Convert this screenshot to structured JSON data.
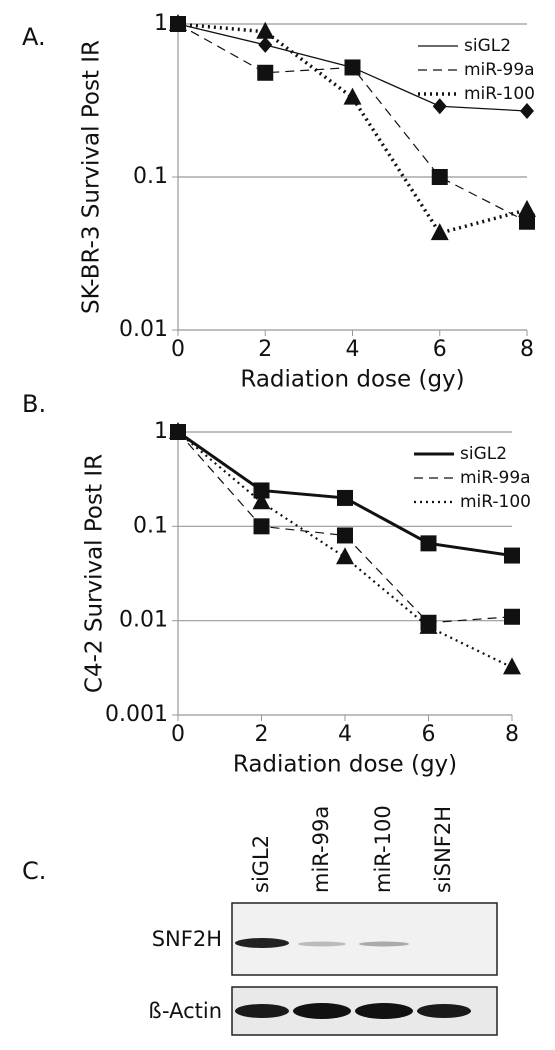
{
  "chart_data": [
    {
      "type": "line",
      "panel_label": "A.",
      "ylabel": "SK-BR-3 Survival Post IR",
      "xlabel": "Radiation dose (gy)",
      "x": [
        0,
        2,
        4,
        6,
        8
      ],
      "xlim": [
        0,
        8
      ],
      "xticks": [
        0,
        2,
        4,
        6,
        8
      ],
      "ylim": [
        0.01,
        1
      ],
      "yticks": [
        0.01,
        0.1,
        1
      ],
      "log_y": true,
      "grid": true,
      "legend": "upper right",
      "series": [
        {
          "name": "siGL2",
          "color": "#111111",
          "line_style": "solid",
          "line_width": 1.3,
          "marker": "diamond",
          "values": [
            1,
            0.73,
            0.52,
            0.29,
            0.27
          ]
        },
        {
          "name": "miR-99a",
          "color": "#111111",
          "line_style": "dashed",
          "line_width": 1.2,
          "marker": "square",
          "values": [
            1,
            0.48,
            0.52,
            0.1,
            0.051
          ]
        },
        {
          "name": "miR-100",
          "color": "#111111",
          "line_style": "dotted",
          "line_width": 3.5,
          "marker": "triangle",
          "values": [
            1,
            0.89,
            0.33,
            0.043,
            0.061
          ]
        }
      ]
    },
    {
      "type": "line",
      "panel_label": "B.",
      "ylabel": "C4-2 Survival Post IR",
      "xlabel": "Radiation dose (gy)",
      "x": [
        0,
        2,
        4,
        6,
        8
      ],
      "xlim": [
        0,
        8
      ],
      "xticks": [
        0,
        2,
        4,
        6,
        8
      ],
      "ylim": [
        0.001,
        1
      ],
      "yticks": [
        0.001,
        0.01,
        0.1,
        1
      ],
      "log_y": true,
      "grid": true,
      "legend": "upper right",
      "series": [
        {
          "name": "siGL2",
          "color": "#111111",
          "line_style": "solid",
          "line_width": 3,
          "marker": "square",
          "values": [
            1,
            0.24,
            0.2,
            0.066,
            0.049
          ]
        },
        {
          "name": "miR-99a",
          "color": "#111111",
          "line_style": "dashed",
          "line_width": 1.2,
          "marker": "square",
          "values": [
            1,
            0.1,
            0.08,
            0.0095,
            0.011
          ]
        },
        {
          "name": "miR-100",
          "color": "#111111",
          "line_style": "dotted",
          "line_width": 2.2,
          "marker": "triangle",
          "values": [
            1,
            0.18,
            0.047,
            0.0086,
            0.0032
          ]
        }
      ]
    }
  ],
  "blot": {
    "panel_label": "C.",
    "lanes": [
      "siGL2",
      "miR-99a",
      "miR-100",
      "siSNF2H"
    ],
    "rows": [
      "SNF2H",
      "ß-Actin"
    ]
  }
}
